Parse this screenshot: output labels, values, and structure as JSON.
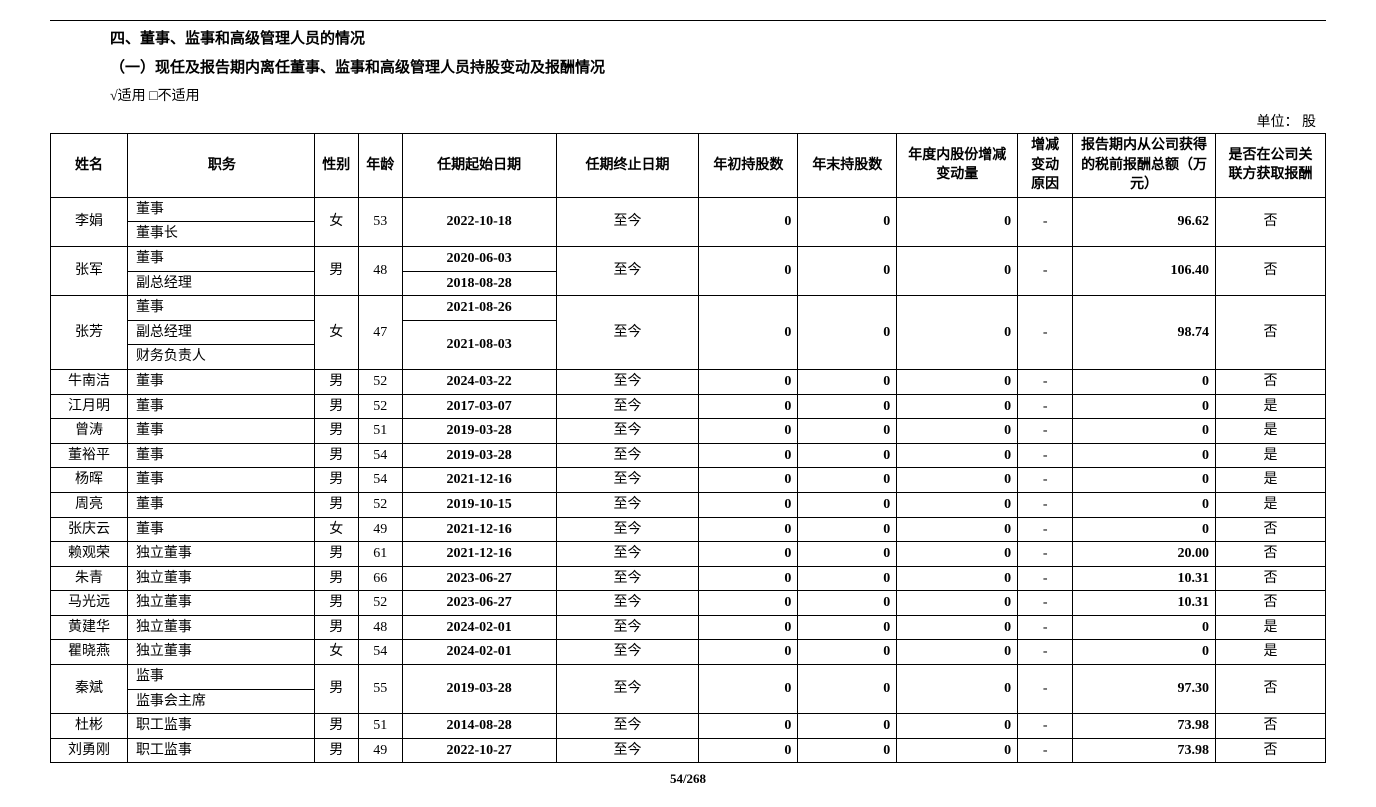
{
  "heading": "四、董事、监事和高级管理人员的情况",
  "subheading": "（一）现任及报告期内离任董事、监事和高级管理人员持股变动及报酬情况",
  "applicable": "√适用  □不适用",
  "unit_label": "单位：  股",
  "page_number": "54/268",
  "table": {
    "columns": [
      "姓名",
      "职务",
      "性别",
      "年龄",
      "任期起始日期",
      "任期终止日期",
      "年初持股数",
      "年末持股数",
      "年度内股份增减变动量",
      "增减变动原因",
      "报告期内从公司获得的税前报酬总额（万元）",
      "是否在公司关联方获取报酬"
    ],
    "rows": [
      {
        "name": "李娟",
        "sex": "女",
        "age": "53",
        "positions": [
          {
            "label": "董事",
            "start": "2022-10-18"
          },
          {
            "label": "董事长",
            "start": null
          }
        ],
        "start_merged": "2022-10-18",
        "end": "至今",
        "begin_shares": "0",
        "end_shares": "0",
        "change": "0",
        "reason": "-",
        "comp": "96.62",
        "related": "否"
      },
      {
        "name": "张军",
        "sex": "男",
        "age": "48",
        "positions": [
          {
            "label": "董事",
            "start": "2020-06-03"
          },
          {
            "label": "副总经理",
            "start": "2018-08-28"
          }
        ],
        "end": "至今",
        "begin_shares": "0",
        "end_shares": "0",
        "change": "0",
        "reason": "-",
        "comp": "106.40",
        "related": "否"
      },
      {
        "name": "张芳",
        "sex": "女",
        "age": "47",
        "positions": [
          {
            "label": "董事",
            "start": "2021-08-26"
          },
          {
            "label": "副总经理",
            "start": "2021-08-03"
          },
          {
            "label": "财务负责人",
            "start": null
          }
        ],
        "end": "至今",
        "begin_shares": "0",
        "end_shares": "0",
        "change": "0",
        "reason": "-",
        "comp": "98.74",
        "related": "否"
      },
      {
        "name": "牛南洁",
        "sex": "男",
        "age": "52",
        "positions": [
          {
            "label": "董事",
            "start": "2024-03-22"
          }
        ],
        "end": "至今",
        "begin_shares": "0",
        "end_shares": "0",
        "change": "0",
        "reason": "-",
        "comp": "0",
        "related": "否"
      },
      {
        "name": "江月明",
        "sex": "男",
        "age": "52",
        "positions": [
          {
            "label": "董事",
            "start": "2017-03-07"
          }
        ],
        "end": "至今",
        "begin_shares": "0",
        "end_shares": "0",
        "change": "0",
        "reason": "-",
        "comp": "0",
        "related": "是"
      },
      {
        "name": "曾涛",
        "sex": "男",
        "age": "51",
        "positions": [
          {
            "label": "董事",
            "start": "2019-03-28"
          }
        ],
        "end": "至今",
        "begin_shares": "0",
        "end_shares": "0",
        "change": "0",
        "reason": "-",
        "comp": "0",
        "related": "是"
      },
      {
        "name": "董裕平",
        "sex": "男",
        "age": "54",
        "positions": [
          {
            "label": "董事",
            "start": "2019-03-28"
          }
        ],
        "end": "至今",
        "begin_shares": "0",
        "end_shares": "0",
        "change": "0",
        "reason": "-",
        "comp": "0",
        "related": "是"
      },
      {
        "name": "杨晖",
        "sex": "男",
        "age": "54",
        "positions": [
          {
            "label": "董事",
            "start": "2021-12-16"
          }
        ],
        "end": "至今",
        "begin_shares": "0",
        "end_shares": "0",
        "change": "0",
        "reason": "-",
        "comp": "0",
        "related": "是"
      },
      {
        "name": "周亮",
        "sex": "男",
        "age": "52",
        "positions": [
          {
            "label": "董事",
            "start": "2019-10-15"
          }
        ],
        "end": "至今",
        "begin_shares": "0",
        "end_shares": "0",
        "change": "0",
        "reason": "-",
        "comp": "0",
        "related": "是"
      },
      {
        "name": "张庆云",
        "sex": "女",
        "age": "49",
        "positions": [
          {
            "label": "董事",
            "start": "2021-12-16"
          }
        ],
        "end": "至今",
        "begin_shares": "0",
        "end_shares": "0",
        "change": "0",
        "reason": "-",
        "comp": "0",
        "related": "否"
      },
      {
        "name": "赖观荣",
        "sex": "男",
        "age": "61",
        "positions": [
          {
            "label": "独立董事",
            "start": "2021-12-16"
          }
        ],
        "end": "至今",
        "begin_shares": "0",
        "end_shares": "0",
        "change": "0",
        "reason": "-",
        "comp": "20.00",
        "related": "否"
      },
      {
        "name": "朱青",
        "sex": "男",
        "age": "66",
        "positions": [
          {
            "label": "独立董事",
            "start": "2023-06-27"
          }
        ],
        "end": "至今",
        "begin_shares": "0",
        "end_shares": "0",
        "change": "0",
        "reason": "-",
        "comp": "10.31",
        "related": "否"
      },
      {
        "name": "马光远",
        "sex": "男",
        "age": "52",
        "positions": [
          {
            "label": "独立董事",
            "start": "2023-06-27"
          }
        ],
        "end": "至今",
        "begin_shares": "0",
        "end_shares": "0",
        "change": "0",
        "reason": "-",
        "comp": "10.31",
        "related": "否"
      },
      {
        "name": "黄建华",
        "sex": "男",
        "age": "48",
        "positions": [
          {
            "label": "独立董事",
            "start": "2024-02-01"
          }
        ],
        "end": "至今",
        "begin_shares": "0",
        "end_shares": "0",
        "change": "0",
        "reason": "-",
        "comp": "0",
        "related": "是"
      },
      {
        "name": "瞿晓燕",
        "sex": "女",
        "age": "54",
        "positions": [
          {
            "label": "独立董事",
            "start": "2024-02-01"
          }
        ],
        "end": "至今",
        "begin_shares": "0",
        "end_shares": "0",
        "change": "0",
        "reason": "-",
        "comp": "0",
        "related": "是"
      },
      {
        "name": "秦斌",
        "sex": "男",
        "age": "55",
        "positions": [
          {
            "label": "监事",
            "start": "2019-03-28"
          },
          {
            "label": "监事会主席",
            "start": null
          }
        ],
        "start_merged": "2019-03-28",
        "end": "至今",
        "begin_shares": "0",
        "end_shares": "0",
        "change": "0",
        "reason": "-",
        "comp": "97.30",
        "related": "否"
      },
      {
        "name": "杜彬",
        "sex": "男",
        "age": "51",
        "positions": [
          {
            "label": "职工监事",
            "start": "2014-08-28"
          }
        ],
        "end": "至今",
        "begin_shares": "0",
        "end_shares": "0",
        "change": "0",
        "reason": "-",
        "comp": "73.98",
        "related": "否"
      },
      {
        "name": "刘勇刚",
        "sex": "男",
        "age": "49",
        "positions": [
          {
            "label": "职工监事",
            "start": "2022-10-27"
          }
        ],
        "end": "至今",
        "begin_shares": "0",
        "end_shares": "0",
        "change": "0",
        "reason": "-",
        "comp": "73.98",
        "related": "否"
      }
    ]
  }
}
